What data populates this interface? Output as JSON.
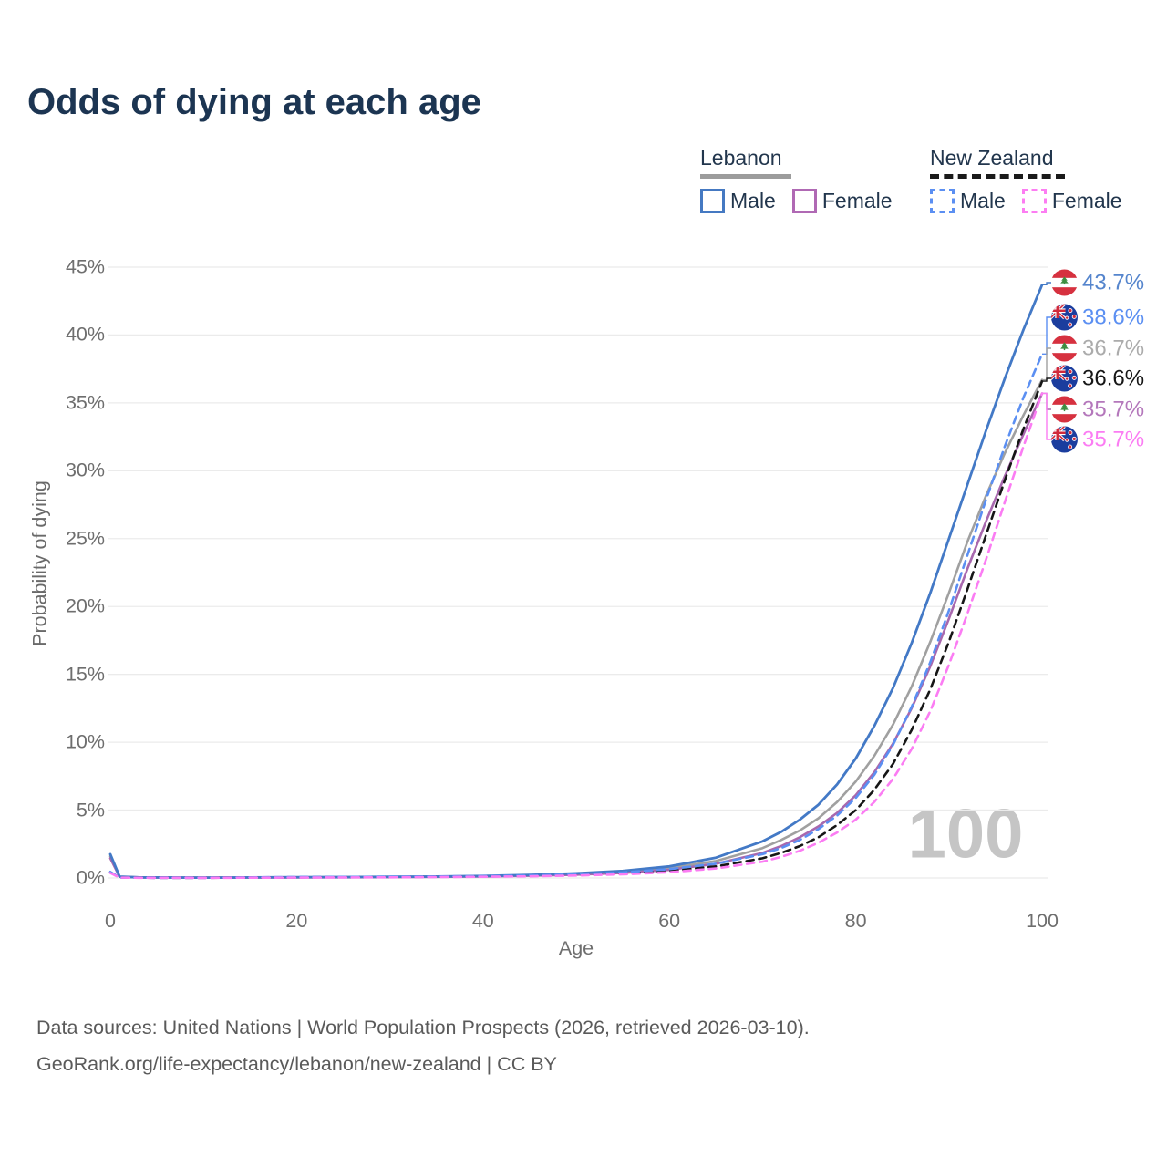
{
  "title": "Odds of dying at each age",
  "age_counter": "100",
  "legend": {
    "groups": [
      {
        "id": "lebanon",
        "label": "Lebanon",
        "line_style": "solid",
        "line_color": "#9c9c9c",
        "items": [
          {
            "id": "lebanon-male",
            "label": "Male",
            "swatch_color": "#4579c2",
            "swatch_style": "solid"
          },
          {
            "id": "lebanon-female",
            "label": "Female",
            "swatch_color": "#b069b4",
            "swatch_style": "solid"
          }
        ]
      },
      {
        "id": "new-zealand",
        "label": "New Zealand",
        "line_style": "dashed",
        "line_color": "#1a1a1a",
        "items": [
          {
            "id": "new-zealand-male",
            "label": "Male",
            "swatch_color": "#5b8ff2",
            "swatch_style": "dashed"
          },
          {
            "id": "new-zealand-female",
            "label": "Female",
            "swatch_color": "#fc7df2",
            "swatch_style": "dashed"
          }
        ]
      }
    ]
  },
  "footer": {
    "line1": "Data sources: United Nations | World Population Prospects (2026, retrieved 2026-03-10).",
    "line2": "GeoRank.org/life-expectancy/lebanon/new-zealand | CC BY"
  },
  "chart_data": {
    "type": "line",
    "title": "Odds of dying at each age",
    "xlabel": "Age",
    "ylabel": "Probability of dying",
    "xlim": [
      0,
      100
    ],
    "ylim": [
      0,
      45
    ],
    "grid": "horizontal",
    "legend_position": "top-right",
    "x_ticks": {
      "values": [
        0,
        20,
        40,
        60,
        80,
        100
      ],
      "labels": [
        "0",
        "20",
        "40",
        "60",
        "80",
        "100"
      ]
    },
    "y_ticks": {
      "values": [
        0,
        5,
        10,
        15,
        20,
        25,
        30,
        35,
        40,
        45
      ],
      "labels": [
        "0%",
        "5%",
        "10%",
        "15%",
        "20%",
        "25%",
        "30%",
        "35%",
        "40%",
        "45%"
      ]
    },
    "series": [
      {
        "id": "lebanon-all",
        "country": "lebanon",
        "name": "Lebanon Both sexes",
        "color": "#a0a0a0",
        "label_color": "#ababab",
        "dash": false,
        "end_value": 36.7,
        "end_label": "36.7%",
        "row": 2,
        "points": [
          [
            0,
            1.6
          ],
          [
            1,
            0.09
          ],
          [
            3,
            0.045
          ],
          [
            5,
            0.035
          ],
          [
            10,
            0.028
          ],
          [
            15,
            0.035
          ],
          [
            20,
            0.05
          ],
          [
            25,
            0.06
          ],
          [
            30,
            0.075
          ],
          [
            35,
            0.095
          ],
          [
            40,
            0.13
          ],
          [
            45,
            0.19
          ],
          [
            50,
            0.28
          ],
          [
            55,
            0.44
          ],
          [
            60,
            0.72
          ],
          [
            65,
            1.25
          ],
          [
            70,
            2.2
          ],
          [
            72,
            2.8
          ],
          [
            74,
            3.5
          ],
          [
            76,
            4.4
          ],
          [
            78,
            5.6
          ],
          [
            80,
            7.1
          ],
          [
            82,
            9.0
          ],
          [
            84,
            11.3
          ],
          [
            86,
            14.1
          ],
          [
            88,
            17.4
          ],
          [
            90,
            21.0
          ],
          [
            92,
            24.8
          ],
          [
            94,
            28.2
          ],
          [
            96,
            31.3
          ],
          [
            98,
            34.1
          ],
          [
            100,
            36.7
          ]
        ]
      },
      {
        "id": "lebanon-female",
        "country": "lebanon",
        "name": "Lebanon Female",
        "color": "#a868ae",
        "label_color": "#b477bb",
        "dash": false,
        "end_value": 35.7,
        "end_label": "35.7%",
        "row": 4,
        "points": [
          [
            0,
            1.45
          ],
          [
            1,
            0.085
          ],
          [
            3,
            0.04
          ],
          [
            5,
            0.03
          ],
          [
            10,
            0.025
          ],
          [
            15,
            0.03
          ],
          [
            20,
            0.04
          ],
          [
            25,
            0.05
          ],
          [
            30,
            0.06
          ],
          [
            35,
            0.08
          ],
          [
            40,
            0.11
          ],
          [
            45,
            0.16
          ],
          [
            50,
            0.24
          ],
          [
            55,
            0.37
          ],
          [
            60,
            0.6
          ],
          [
            65,
            1.05
          ],
          [
            70,
            1.85
          ],
          [
            72,
            2.35
          ],
          [
            74,
            3.0
          ],
          [
            76,
            3.8
          ],
          [
            78,
            4.8
          ],
          [
            80,
            6.1
          ],
          [
            82,
            7.8
          ],
          [
            84,
            9.9
          ],
          [
            86,
            12.5
          ],
          [
            88,
            15.6
          ],
          [
            90,
            19.1
          ],
          [
            92,
            22.8
          ],
          [
            94,
            26.3
          ],
          [
            96,
            29.6
          ],
          [
            98,
            32.7
          ],
          [
            100,
            35.7
          ]
        ]
      },
      {
        "id": "lebanon-male",
        "country": "lebanon",
        "name": "Lebanon Male",
        "color": "#4379c6",
        "label_color": "#5585cd",
        "dash": false,
        "end_value": 43.7,
        "end_label": "43.7%",
        "row": 0,
        "points": [
          [
            0,
            1.75
          ],
          [
            1,
            0.1
          ],
          [
            3,
            0.05
          ],
          [
            5,
            0.04
          ],
          [
            10,
            0.03
          ],
          [
            15,
            0.04
          ],
          [
            20,
            0.06
          ],
          [
            25,
            0.07
          ],
          [
            30,
            0.09
          ],
          [
            35,
            0.11
          ],
          [
            40,
            0.15
          ],
          [
            45,
            0.22
          ],
          [
            50,
            0.34
          ],
          [
            55,
            0.52
          ],
          [
            60,
            0.85
          ],
          [
            65,
            1.5
          ],
          [
            70,
            2.7
          ],
          [
            72,
            3.4
          ],
          [
            74,
            4.3
          ],
          [
            76,
            5.4
          ],
          [
            78,
            6.9
          ],
          [
            80,
            8.8
          ],
          [
            82,
            11.2
          ],
          [
            84,
            14.0
          ],
          [
            86,
            17.3
          ],
          [
            88,
            21.0
          ],
          [
            90,
            25.0
          ],
          [
            92,
            29.0
          ],
          [
            94,
            33.0
          ],
          [
            96,
            36.8
          ],
          [
            98,
            40.4
          ],
          [
            100,
            43.7
          ]
        ]
      },
      {
        "id": "new-zealand-all",
        "country": "new-zealand",
        "name": "New Zealand Both sexes",
        "color": "#161616",
        "label_color": "#161616",
        "dash": true,
        "end_value": 36.6,
        "end_label": "36.6%",
        "row": 3,
        "points": [
          [
            0,
            0.4
          ],
          [
            1,
            0.03
          ],
          [
            3,
            0.018
          ],
          [
            5,
            0.013
          ],
          [
            10,
            0.011
          ],
          [
            15,
            0.03
          ],
          [
            20,
            0.05
          ],
          [
            25,
            0.06
          ],
          [
            30,
            0.07
          ],
          [
            35,
            0.085
          ],
          [
            40,
            0.11
          ],
          [
            45,
            0.15
          ],
          [
            50,
            0.22
          ],
          [
            55,
            0.33
          ],
          [
            60,
            0.52
          ],
          [
            65,
            0.85
          ],
          [
            70,
            1.45
          ],
          [
            72,
            1.85
          ],
          [
            74,
            2.35
          ],
          [
            76,
            3.0
          ],
          [
            78,
            3.9
          ],
          [
            80,
            5.0
          ],
          [
            82,
            6.5
          ],
          [
            84,
            8.4
          ],
          [
            86,
            10.9
          ],
          [
            88,
            13.9
          ],
          [
            90,
            17.4
          ],
          [
            92,
            21.3
          ],
          [
            94,
            25.3
          ],
          [
            96,
            29.3
          ],
          [
            98,
            33.1
          ],
          [
            100,
            36.6
          ]
        ]
      },
      {
        "id": "new-zealand-male",
        "country": "new-zealand",
        "name": "New Zealand Male",
        "color": "#5b8ff2",
        "label_color": "#5b8ff2",
        "dash": true,
        "end_value": 38.6,
        "end_label": "38.6%",
        "row": 1,
        "points": [
          [
            0,
            0.45
          ],
          [
            1,
            0.035
          ],
          [
            3,
            0.02
          ],
          [
            5,
            0.015
          ],
          [
            10,
            0.012
          ],
          [
            15,
            0.04
          ],
          [
            20,
            0.07
          ],
          [
            25,
            0.08
          ],
          [
            30,
            0.09
          ],
          [
            35,
            0.11
          ],
          [
            40,
            0.14
          ],
          [
            45,
            0.19
          ],
          [
            50,
            0.27
          ],
          [
            55,
            0.41
          ],
          [
            60,
            0.65
          ],
          [
            65,
            1.05
          ],
          [
            70,
            1.75
          ],
          [
            72,
            2.2
          ],
          [
            74,
            2.8
          ],
          [
            76,
            3.6
          ],
          [
            78,
            4.6
          ],
          [
            80,
            5.9
          ],
          [
            82,
            7.6
          ],
          [
            84,
            9.8
          ],
          [
            86,
            12.6
          ],
          [
            88,
            15.9
          ],
          [
            90,
            19.7
          ],
          [
            92,
            23.8
          ],
          [
            94,
            27.9
          ],
          [
            96,
            31.8
          ],
          [
            98,
            35.4
          ],
          [
            100,
            38.6
          ]
        ]
      },
      {
        "id": "new-zealand-female",
        "country": "new-zealand",
        "name": "New Zealand Female",
        "color": "#fb7cf3",
        "label_color": "#fb7cf3",
        "dash": true,
        "end_value": 35.7,
        "end_label": "35.7%",
        "row": 5,
        "points": [
          [
            0,
            0.37
          ],
          [
            1,
            0.028
          ],
          [
            3,
            0.016
          ],
          [
            5,
            0.012
          ],
          [
            10,
            0.01
          ],
          [
            15,
            0.02
          ],
          [
            20,
            0.03
          ],
          [
            25,
            0.04
          ],
          [
            30,
            0.05
          ],
          [
            35,
            0.065
          ],
          [
            40,
            0.09
          ],
          [
            45,
            0.12
          ],
          [
            50,
            0.18
          ],
          [
            55,
            0.27
          ],
          [
            60,
            0.42
          ],
          [
            65,
            0.7
          ],
          [
            70,
            1.2
          ],
          [
            72,
            1.55
          ],
          [
            74,
            2.0
          ],
          [
            76,
            2.6
          ],
          [
            78,
            3.35
          ],
          [
            80,
            4.3
          ],
          [
            82,
            5.6
          ],
          [
            84,
            7.3
          ],
          [
            86,
            9.5
          ],
          [
            88,
            12.3
          ],
          [
            90,
            15.7
          ],
          [
            92,
            19.5
          ],
          [
            94,
            23.5
          ],
          [
            96,
            27.7
          ],
          [
            98,
            31.8
          ],
          [
            100,
            35.7
          ]
        ]
      }
    ]
  }
}
